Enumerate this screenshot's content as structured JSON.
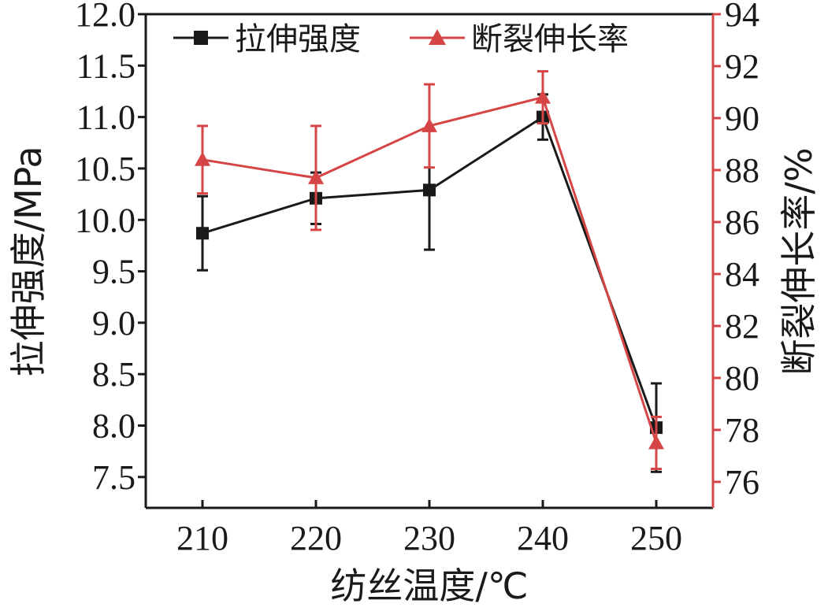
{
  "chart_data": {
    "type": "line",
    "x": [
      210,
      220,
      230,
      240,
      250
    ],
    "xlabel": "纺丝温度/℃",
    "xticks": [
      "210",
      "220",
      "230",
      "240",
      "250"
    ],
    "y_left": {
      "label": "拉伸强度/MPa",
      "ylim": [
        7.2,
        12.0
      ],
      "ticks": [
        "7.5",
        "8.0",
        "8.5",
        "9.0",
        "9.5",
        "10.0",
        "10.5",
        "11.0",
        "11.5",
        "12.0"
      ],
      "tick_values": [
        7.5,
        8.0,
        8.5,
        9.0,
        9.5,
        10.0,
        10.5,
        11.0,
        11.5,
        12.0
      ]
    },
    "y_right": {
      "label": "断裂伸长率/%",
      "ylim": [
        75,
        94
      ],
      "ticks": [
        "76",
        "78",
        "80",
        "82",
        "84",
        "86",
        "88",
        "90",
        "92",
        "94"
      ],
      "tick_values": [
        76,
        78,
        80,
        82,
        84,
        86,
        88,
        90,
        92,
        94
      ]
    },
    "series": [
      {
        "name": "拉伸强度",
        "axis": "left",
        "marker": "square",
        "color": "#1a1a1a",
        "values": [
          9.87,
          10.21,
          10.29,
          11.0,
          7.98
        ],
        "errors": [
          0.36,
          0.25,
          0.58,
          0.22,
          0.43
        ]
      },
      {
        "name": "断裂伸长率",
        "axis": "right",
        "marker": "triangle",
        "color": "#d64545",
        "values": [
          88.4,
          87.7,
          89.7,
          90.8,
          77.5
        ],
        "errors": [
          1.3,
          2.0,
          1.6,
          1.0,
          1.0
        ]
      }
    ],
    "legend": "top",
    "grid": false
  }
}
